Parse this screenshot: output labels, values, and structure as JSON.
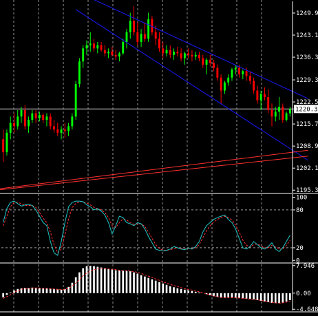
{
  "colors": {
    "background": "#000000",
    "bull": "#00ff00",
    "bear": "#ff0000",
    "wick": "#ffffff",
    "grid": "#c8c8c8",
    "channel": "#1a1aff",
    "trend": "#ff3030",
    "stoch_main": "#20c8c8",
    "stoch_signal": "#ff3030",
    "osma_hist": "#ffffff",
    "osma_signal": "#ff3030",
    "axis": "#ffffff"
  },
  "chart_data": [
    {
      "type": "candlestick",
      "title": "",
      "y_ticks": [
        "1249.90",
        "1243.10",
        "1236.30",
        "1229.30",
        "1222.50",
        "1215.70",
        "1208.90",
        "1202.10",
        "1195.30"
      ],
      "ylim": [
        1194.5,
        1253.5
      ],
      "current_price": "1220.33",
      "grid": true,
      "ohlc": [
        [
          1211.0,
          1214.0,
          1204.0,
          1207.0
        ],
        [
          1207.0,
          1214.0,
          1206.0,
          1213.0
        ],
        [
          1213.0,
          1218.0,
          1211.0,
          1216.0
        ],
        [
          1216.0,
          1219.0,
          1213.0,
          1215.0
        ],
        [
          1215.0,
          1220.0,
          1214.0,
          1218.0
        ],
        [
          1218.0,
          1221.0,
          1216.0,
          1220.0
        ],
        [
          1220.0,
          1221.5,
          1214.0,
          1215.0
        ],
        [
          1215.0,
          1218.0,
          1213.0,
          1217.0
        ],
        [
          1217.0,
          1220.0,
          1216.0,
          1219.0
        ],
        [
          1219.0,
          1220.0,
          1216.0,
          1217.5
        ],
        [
          1217.5,
          1219.5,
          1216.5,
          1218.5
        ],
        [
          1218.5,
          1219.0,
          1216.0,
          1217.0
        ],
        [
          1217.0,
          1219.0,
          1215.0,
          1218.0
        ],
        [
          1218.0,
          1219.0,
          1214.0,
          1215.0
        ],
        [
          1215.0,
          1217.0,
          1213.0,
          1214.0
        ],
        [
          1214.0,
          1216.0,
          1212.0,
          1213.0
        ],
        [
          1213.0,
          1215.0,
          1211.0,
          1214.0
        ],
        [
          1214.0,
          1216.0,
          1211.5,
          1213.5
        ],
        [
          1213.5,
          1216.0,
          1212.0,
          1215.0
        ],
        [
          1215.0,
          1219.0,
          1214.0,
          1218.0
        ],
        [
          1218.0,
          1229.0,
          1217.0,
          1228.0
        ],
        [
          1228.0,
          1236.0,
          1227.0,
          1235.0
        ],
        [
          1235.0,
          1240.0,
          1233.0,
          1239.0
        ],
        [
          1239.0,
          1241.5,
          1237.0,
          1240.0
        ],
        [
          1240.0,
          1244.0,
          1238.0,
          1240.5
        ],
        [
          1240.5,
          1242.0,
          1238.0,
          1239.0
        ],
        [
          1239.0,
          1241.0,
          1237.5,
          1240.0
        ],
        [
          1240.0,
          1241.0,
          1238.0,
          1238.5
        ],
        [
          1238.5,
          1240.0,
          1236.5,
          1237.5
        ],
        [
          1237.5,
          1239.0,
          1236.0,
          1238.0
        ],
        [
          1238.0,
          1239.5,
          1236.5,
          1237.0
        ],
        [
          1237.0,
          1238.5,
          1235.5,
          1236.5
        ],
        [
          1236.5,
          1238.0,
          1235.0,
          1237.5
        ],
        [
          1237.5,
          1242.0,
          1237.0,
          1241.0
        ],
        [
          1241.0,
          1245.0,
          1239.0,
          1244.0
        ],
        [
          1244.0,
          1250.0,
          1242.0,
          1247.5
        ],
        [
          1247.5,
          1252.0,
          1243.0,
          1244.0
        ],
        [
          1244.0,
          1247.0,
          1240.0,
          1241.0
        ],
        [
          1241.0,
          1245.0,
          1239.5,
          1243.5
        ],
        [
          1243.5,
          1247.0,
          1241.0,
          1242.0
        ],
        [
          1242.0,
          1250.0,
          1241.0,
          1248.0
        ],
        [
          1248.0,
          1249.0,
          1243.0,
          1244.0
        ],
        [
          1244.0,
          1246.0,
          1240.0,
          1242.0
        ],
        [
          1242.0,
          1244.0,
          1238.0,
          1239.0
        ],
        [
          1239.0,
          1241.0,
          1236.0,
          1237.5
        ],
        [
          1237.5,
          1240.0,
          1236.5,
          1238.5
        ],
        [
          1238.5,
          1240.0,
          1236.0,
          1237.0
        ],
        [
          1237.0,
          1239.0,
          1235.5,
          1238.0
        ],
        [
          1238.0,
          1239.5,
          1236.5,
          1237.5
        ],
        [
          1237.5,
          1239.0,
          1235.0,
          1236.0
        ],
        [
          1236.0,
          1238.0,
          1234.0,
          1237.5
        ],
        [
          1237.5,
          1239.0,
          1236.0,
          1237.0
        ],
        [
          1237.0,
          1238.5,
          1235.0,
          1236.5
        ],
        [
          1236.5,
          1238.0,
          1235.5,
          1237.0
        ],
        [
          1237.0,
          1238.0,
          1235.0,
          1236.0
        ],
        [
          1236.0,
          1237.0,
          1233.0,
          1234.0
        ],
        [
          1234.0,
          1236.0,
          1231.0,
          1235.5
        ],
        [
          1235.5,
          1237.0,
          1233.5,
          1234.5
        ],
        [
          1234.5,
          1235.5,
          1232.0,
          1233.0
        ],
        [
          1233.0,
          1234.0,
          1229.0,
          1230.0
        ],
        [
          1230.0,
          1231.0,
          1222.0,
          1226.0
        ],
        [
          1226.0,
          1229.0,
          1225.0,
          1228.5
        ],
        [
          1228.5,
          1231.0,
          1227.5,
          1230.0
        ],
        [
          1230.0,
          1233.0,
          1229.0,
          1232.5
        ],
        [
          1232.5,
          1234.0,
          1231.0,
          1233.0
        ],
        [
          1233.0,
          1234.0,
          1230.0,
          1231.0
        ],
        [
          1231.0,
          1232.5,
          1229.5,
          1232.0
        ],
        [
          1232.0,
          1233.0,
          1229.0,
          1230.5
        ],
        [
          1230.5,
          1232.0,
          1228.0,
          1229.0
        ],
        [
          1229.0,
          1230.0,
          1225.0,
          1226.0
        ],
        [
          1226.0,
          1227.5,
          1222.0,
          1223.0
        ],
        [
          1223.0,
          1226.0,
          1220.0,
          1225.0
        ],
        [
          1225.0,
          1227.0,
          1223.0,
          1224.0
        ],
        [
          1224.0,
          1226.5,
          1219.0,
          1220.0
        ],
        [
          1220.0,
          1222.0,
          1215.0,
          1218.0
        ],
        [
          1218.0,
          1221.0,
          1216.5,
          1219.5
        ],
        [
          1219.5,
          1224.0,
          1217.0,
          1221.0
        ],
        [
          1221.0,
          1222.0,
          1216.0,
          1217.0
        ],
        [
          1217.0,
          1219.5,
          1216.5,
          1219.0
        ],
        [
          1219.0,
          1221.0,
          1218.0,
          1220.3
        ]
      ]
    },
    {
      "type": "line",
      "title": "",
      "y_ticks": [
        "100",
        "80",
        "20",
        "0"
      ],
      "ylim": [
        -3,
        105
      ],
      "grid": true,
      "levels": [
        80,
        20
      ],
      "series": [
        {
          "values": [
            60,
            82,
            92,
            94,
            90,
            86,
            88,
            89,
            87,
            80,
            70,
            60,
            55,
            30,
            12,
            8,
            30,
            60,
            85,
            92,
            94,
            94,
            93,
            88,
            85,
            80,
            82,
            78,
            72,
            60,
            42,
            55,
            70,
            68,
            60,
            58,
            55,
            60,
            58,
            50,
            38,
            28,
            18,
            16,
            15,
            16,
            18,
            22,
            20,
            18,
            17,
            20,
            18,
            22,
            30,
            45,
            55,
            60,
            65,
            68,
            70,
            72,
            65,
            60,
            50,
            35,
            20,
            18,
            22,
            30,
            25,
            20,
            18,
            22,
            28,
            18,
            14,
            20,
            30,
            40
          ]
        },
        {
          "values": [
            55,
            70,
            85,
            92,
            92,
            90,
            87,
            87,
            87,
            84,
            76,
            67,
            60,
            45,
            25,
            12,
            18,
            40,
            66,
            84,
            90,
            93,
            93,
            91,
            88,
            84,
            82,
            80,
            76,
            68,
            55,
            52,
            60,
            66,
            64,
            60,
            57,
            58,
            58,
            54,
            45,
            35,
            25,
            19,
            16,
            16,
            17,
            19,
            20,
            19,
            18,
            19,
            19,
            20,
            25,
            36,
            47,
            55,
            61,
            65,
            68,
            70,
            68,
            64,
            56,
            45,
            32,
            24,
            21,
            25,
            26,
            23,
            20,
            20,
            24,
            22,
            18,
            18,
            24,
            32
          ]
        }
      ]
    },
    {
      "type": "bar",
      "title": "",
      "y_ticks": [
        "7.946",
        "0.00",
        "-4.648"
      ],
      "ylim": [
        -5.0,
        8.5
      ],
      "grid": true,
      "values": [
        -1.2,
        -0.5,
        0.2,
        0.8,
        1.2,
        1.4,
        1.5,
        1.5,
        1.6,
        1.5,
        1.5,
        1.4,
        1.4,
        1.3,
        1.2,
        1.1,
        1.0,
        1.2,
        1.8,
        3.0,
        4.6,
        6.0,
        7.2,
        7.8,
        7.9,
        7.8,
        7.6,
        7.4,
        7.2,
        7.0,
        6.8,
        6.6,
        6.5,
        6.5,
        6.4,
        6.3,
        6.0,
        5.6,
        5.2,
        4.8,
        4.4,
        4.0,
        3.6,
        3.2,
        2.8,
        2.4,
        2.0,
        1.7,
        1.4,
        1.2,
        1.0,
        0.8,
        0.6,
        0.4,
        0.2,
        0.0,
        -0.3,
        -0.6,
        -0.9,
        -1.1,
        -1.3,
        -1.3,
        -1.2,
        -1.2,
        -1.3,
        -1.4,
        -1.5,
        -1.6,
        -1.7,
        -1.8,
        -2.0,
        -2.2,
        -2.4,
        -2.6,
        -2.8,
        -2.9,
        -2.9,
        -2.7,
        -2.4,
        -2.0
      ],
      "signal": [
        -1.5,
        -1.0,
        -0.5,
        0.2,
        0.7,
        1.1,
        1.3,
        1.4,
        1.5,
        1.5,
        1.5,
        1.4,
        1.4,
        1.3,
        1.2,
        1.1,
        1.0,
        1.1,
        1.4,
        2.0,
        2.9,
        3.9,
        5.0,
        5.8,
        6.4,
        6.8,
        7.0,
        7.1,
        7.1,
        7.0,
        6.9,
        6.8,
        6.6,
        6.5,
        6.5,
        6.4,
        6.2,
        6.0,
        5.7,
        5.3,
        4.9,
        4.5,
        4.1,
        3.7,
        3.3,
        2.9,
        2.5,
        2.2,
        1.9,
        1.6,
        1.3,
        1.1,
        0.9,
        0.6,
        0.4,
        0.1,
        -0.2,
        -0.5,
        -0.8,
        -1.0,
        -1.2,
        -1.3,
        -1.3,
        -1.3,
        -1.3,
        -1.4,
        -1.5,
        -1.6,
        -1.7,
        -1.8,
        -1.9,
        -2.1,
        -2.3,
        -2.5,
        -2.7,
        -2.8,
        -2.9,
        -2.8,
        -2.6,
        -2.3
      ]
    }
  ]
}
